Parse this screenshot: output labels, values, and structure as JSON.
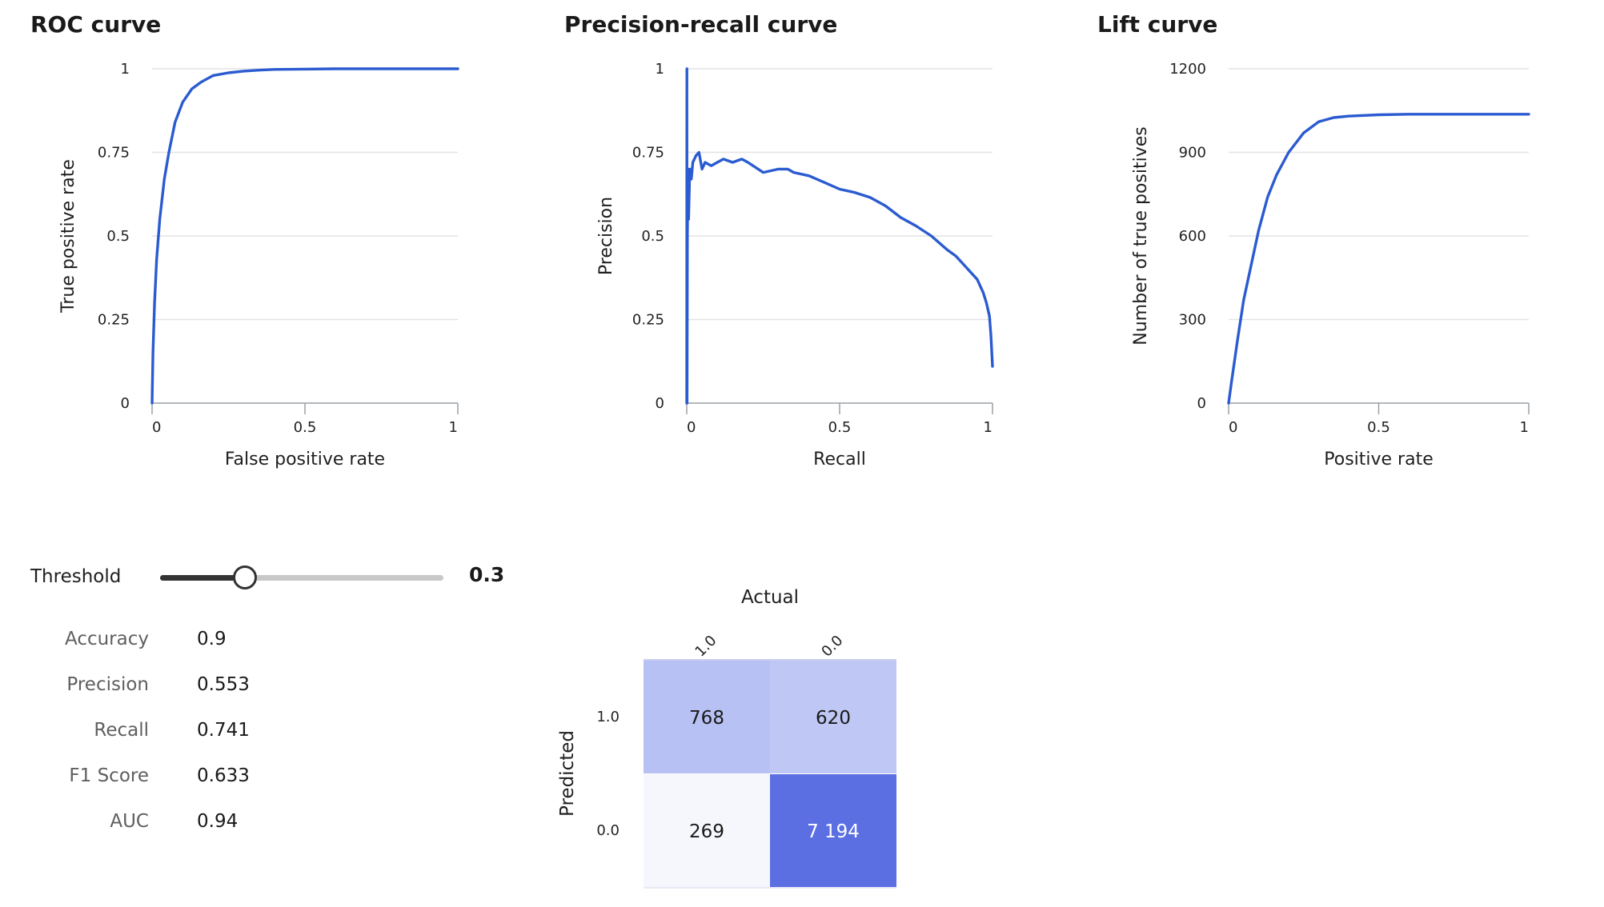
{
  "theme": {
    "line_color": "#2b5bd0",
    "cm_low": "#f6f7fd",
    "cm_mid": "#eceefb",
    "cm_high": "#5b6fe3"
  },
  "roc": {
    "title": "ROC curve"
  },
  "pr": {
    "title": "Precision-recall curve"
  },
  "lift": {
    "title": "Lift curve"
  },
  "chart_data": [
    {
      "type": "line",
      "title": "ROC curve",
      "xlabel": "False positive rate",
      "ylabel": "True positive rate",
      "xlim": [
        0,
        1
      ],
      "ylim": [
        0,
        1
      ],
      "xticks": [
        "0",
        "0.5",
        "1"
      ],
      "yticks": [
        "0",
        "0.25",
        "0.5",
        "0.75",
        "1"
      ],
      "grid": true,
      "series": [
        {
          "x": [
            0,
            0.003,
            0.008,
            0.015,
            0.025,
            0.04,
            0.055,
            0.075,
            0.1,
            0.13,
            0.16,
            0.2,
            0.25,
            0.3,
            0.35,
            0.4,
            0.5,
            0.6,
            0.8,
            1.0
          ],
          "y": [
            0,
            0.15,
            0.3,
            0.43,
            0.55,
            0.67,
            0.75,
            0.84,
            0.9,
            0.94,
            0.96,
            0.98,
            0.988,
            0.993,
            0.996,
            0.998,
            0.999,
            1.0,
            1.0,
            1.0
          ]
        }
      ]
    },
    {
      "type": "line",
      "title": "Precision-recall curve",
      "xlabel": "Recall",
      "ylabel": "Precision",
      "xlim": [
        0,
        1
      ],
      "ylim": [
        0,
        1
      ],
      "xticks": [
        "0",
        "0.5",
        "1"
      ],
      "yticks": [
        "0",
        "0.25",
        "0.5",
        "0.75",
        "1"
      ],
      "grid": true,
      "series": [
        {
          "x": [
            0,
            0.0005,
            0.001,
            0.002,
            0.004,
            0.006,
            0.01,
            0.015,
            0.02,
            0.03,
            0.04,
            0.05,
            0.06,
            0.08,
            0.1,
            0.12,
            0.15,
            0.18,
            0.2,
            0.25,
            0.3,
            0.33,
            0.35,
            0.4,
            0.45,
            0.5,
            0.55,
            0.6,
            0.65,
            0.7,
            0.75,
            0.8,
            0.85,
            0.88,
            0.9,
            0.93,
            0.95,
            0.97,
            0.98,
            0.99,
            0.995,
            1.0
          ],
          "y": [
            0,
            1.0,
            0.0,
            0.5,
            0.7,
            0.55,
            0.7,
            0.67,
            0.72,
            0.74,
            0.75,
            0.7,
            0.72,
            0.71,
            0.72,
            0.73,
            0.72,
            0.73,
            0.72,
            0.69,
            0.7,
            0.7,
            0.69,
            0.68,
            0.66,
            0.64,
            0.63,
            0.615,
            0.59,
            0.555,
            0.53,
            0.5,
            0.46,
            0.44,
            0.42,
            0.39,
            0.37,
            0.33,
            0.3,
            0.26,
            0.2,
            0.11
          ]
        }
      ]
    },
    {
      "type": "line",
      "title": "Lift curve",
      "xlabel": "Positive rate",
      "ylabel": "Number of true positives",
      "xlim": [
        0,
        1
      ],
      "ylim": [
        0,
        1200
      ],
      "xticks": [
        "0",
        "0.5",
        "1"
      ],
      "yticks": [
        "0",
        "300",
        "600",
        "900",
        "1200"
      ],
      "grid": true,
      "series": [
        {
          "x": [
            0,
            0.01,
            0.03,
            0.05,
            0.08,
            0.1,
            0.13,
            0.16,
            0.2,
            0.25,
            0.3,
            0.35,
            0.4,
            0.5,
            0.6,
            0.8,
            1.0
          ],
          "y": [
            0,
            80,
            230,
            370,
            520,
            620,
            740,
            820,
            900,
            970,
            1010,
            1025,
            1030,
            1035,
            1037,
            1037,
            1037
          ]
        }
      ]
    },
    {
      "type": "heatmap",
      "title": "",
      "xlabel": "Actual",
      "ylabel": "Predicted",
      "x_categories": [
        "1.0",
        "0.0"
      ],
      "y_categories": [
        "1.0",
        "0.0"
      ],
      "values": [
        [
          768,
          620
        ],
        [
          269,
          7194
        ]
      ],
      "display_values": [
        [
          "768",
          "620"
        ],
        [
          "269",
          "7 194"
        ]
      ]
    }
  ],
  "threshold": {
    "label": "Threshold",
    "value": 0.3,
    "display": "0.3",
    "min": 0,
    "max": 1
  },
  "metrics": [
    {
      "name": "Accuracy",
      "value": "0.9"
    },
    {
      "name": "Precision",
      "value": "0.553"
    },
    {
      "name": "Recall",
      "value": "0.741"
    },
    {
      "name": "F1 Score",
      "value": "0.633"
    },
    {
      "name": "AUC",
      "value": "0.94"
    }
  ]
}
